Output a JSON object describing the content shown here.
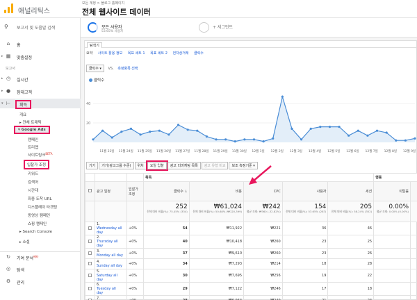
{
  "header": {
    "brand": "애널리틱스",
    "breadcrumb": "모든 계정 > 블로그 홈페이지",
    "view_name": "전체 웹사이트 데이터",
    "caret": "▾"
  },
  "sidebar": {
    "search_placeholder": "보고서 및 도움말 검색",
    "home": "홈",
    "custom": "맞춤설정",
    "reports_label": "보고서",
    "realtime": "실시간",
    "audience": "잠재고객",
    "acquisition": "획득",
    "overview": "개요",
    "all_traffic": "전체 트래픽",
    "google_ads": "Google Ads",
    "ads_items": [
      "캠페인",
      "트리맵",
      "사이트링크",
      "입찰가 조정",
      "키워드",
      "검색어",
      "시간대",
      "최종 도착 URL",
      "디스플레이 타겟팅",
      "동영상 캠페인",
      "쇼핑 캠페인"
    ],
    "sitelink_badge": "BETA",
    "search_console": "Search Console",
    "social": "소셜",
    "attribution": "기여 분석",
    "attribution_badge": "베타",
    "discover": "탐색",
    "admin": "관리"
  },
  "segments": {
    "s1_title": "모든 사용자",
    "s1_sub": "53.65% 사용자",
    "s2_title": "+ 세그먼트"
  },
  "tabs": {
    "explorer": "탐색기",
    "subtabs": [
      "요약",
      "사이트 활용 정보",
      "목표 세트 1",
      "목표 세트 2",
      "전자상거래",
      "클릭수"
    ],
    "metric": "클릭수 ▾",
    "vs": "VS.",
    "select_metric": "측정항목 선택",
    "legend": "클릭수"
  },
  "chart_data": {
    "type": "area",
    "series": [
      {
        "name": "클릭수",
        "values": [
          3,
          12,
          5,
          11,
          14,
          8,
          11,
          12,
          8,
          18,
          13,
          12,
          6,
          3,
          3,
          1,
          3,
          3,
          1,
          4,
          47,
          14,
          3,
          14,
          16,
          16,
          16,
          7,
          12,
          7,
          12,
          10,
          2,
          2,
          4
        ]
      }
    ],
    "x_tick_labels": [
      "11월 23일",
      "11월 24일",
      "11월 25일",
      "11월 26일",
      "11월 27일",
      "11월 28일",
      "11월 29일",
      "11월 30일",
      "12월 1일",
      "12월 2일",
      "12월 3일",
      "12월 4일",
      "12월 5일",
      "12월 6일",
      "12월 7일",
      "12월 8일",
      "12월 9일"
    ],
    "y_ticks": [
      20,
      40
    ],
    "ylim": [
      0,
      50
    ],
    "color": "#4a8dd6",
    "grid": true
  },
  "toolbar": {
    "buttons": [
      "기기",
      "기기(광고그룹 수준)",
      "위치",
      "요일 입찰",
      "광고 리마케팅 목록",
      "광고 유형 비교",
      "보조 측정기준 ▾"
    ],
    "active_index": 3
  },
  "table": {
    "group_acq": "획득",
    "group_beh": "행동",
    "col_keyword": "광고 일정",
    "col_bid": "입찰가 조정",
    "headers": [
      "클릭수",
      "비용",
      "CPC",
      "사용자",
      "세션",
      "이탈률"
    ],
    "totals": {
      "clicks": "252",
      "clicks_sub": "전체 대비 비율(%): 75.45% (334)",
      "cost": "₩61,024",
      "cost_sub": "전체 대비 비율(%): 50.68% (₩120,399)",
      "cpc": "₩242",
      "cpc_sub": "평균 조회: ₩360 (-32.82%)",
      "users": "154",
      "users_sub": "전체 대비 비율(%): 53.65% (287)",
      "sessions": "205",
      "sessions_sub": "전체 대비 비율(%): 58.24% (352)",
      "bounce": "0.00%",
      "bounce_sub": "평균 조회: 0.00% (0.00%)"
    },
    "rows": [
      {
        "n": "1.",
        "name": "Wednesday all day",
        "bid": "+0%",
        "clicks": "54",
        "cost": "₩11,922",
        "cpc": "₩221",
        "users": "36",
        "sessions": "46"
      },
      {
        "n": "2.",
        "name": "Thursday all day",
        "bid": "+0%",
        "clicks": "40",
        "cost": "₩10,418",
        "cpc": "₩260",
        "users": "23",
        "sessions": "25"
      },
      {
        "n": "3.",
        "name": "Monday all day",
        "bid": "+0%",
        "clicks": "37",
        "cost": "₩9,610",
        "cpc": "₩260",
        "users": "23",
        "sessions": "26"
      },
      {
        "n": "4.",
        "name": "Sunday all day",
        "bid": "+0%",
        "clicks": "34",
        "cost": "₩7,293",
        "cpc": "₩214",
        "users": "18",
        "sessions": "28"
      },
      {
        "n": "5.",
        "name": "Saturday all day",
        "bid": "+0%",
        "clicks": "30",
        "cost": "₩7,695",
        "cpc": "₩256",
        "users": "19",
        "sessions": "22"
      },
      {
        "n": "6.",
        "name": "Tuesday all day",
        "bid": "+0%",
        "clicks": "29",
        "cost": "₩7,122",
        "cpc": "₩246",
        "users": "17",
        "sessions": "18"
      },
      {
        "n": "7.",
        "name": "Friday all day",
        "bid": "+0%",
        "clicks": "28",
        "cost": "₩6,964",
        "cpc": "₩249",
        "users": "21",
        "sessions": "24"
      }
    ]
  },
  "colors": {
    "highlight": "#e8175d",
    "accent": "#1a73e8",
    "line": "#4a8dd6"
  }
}
